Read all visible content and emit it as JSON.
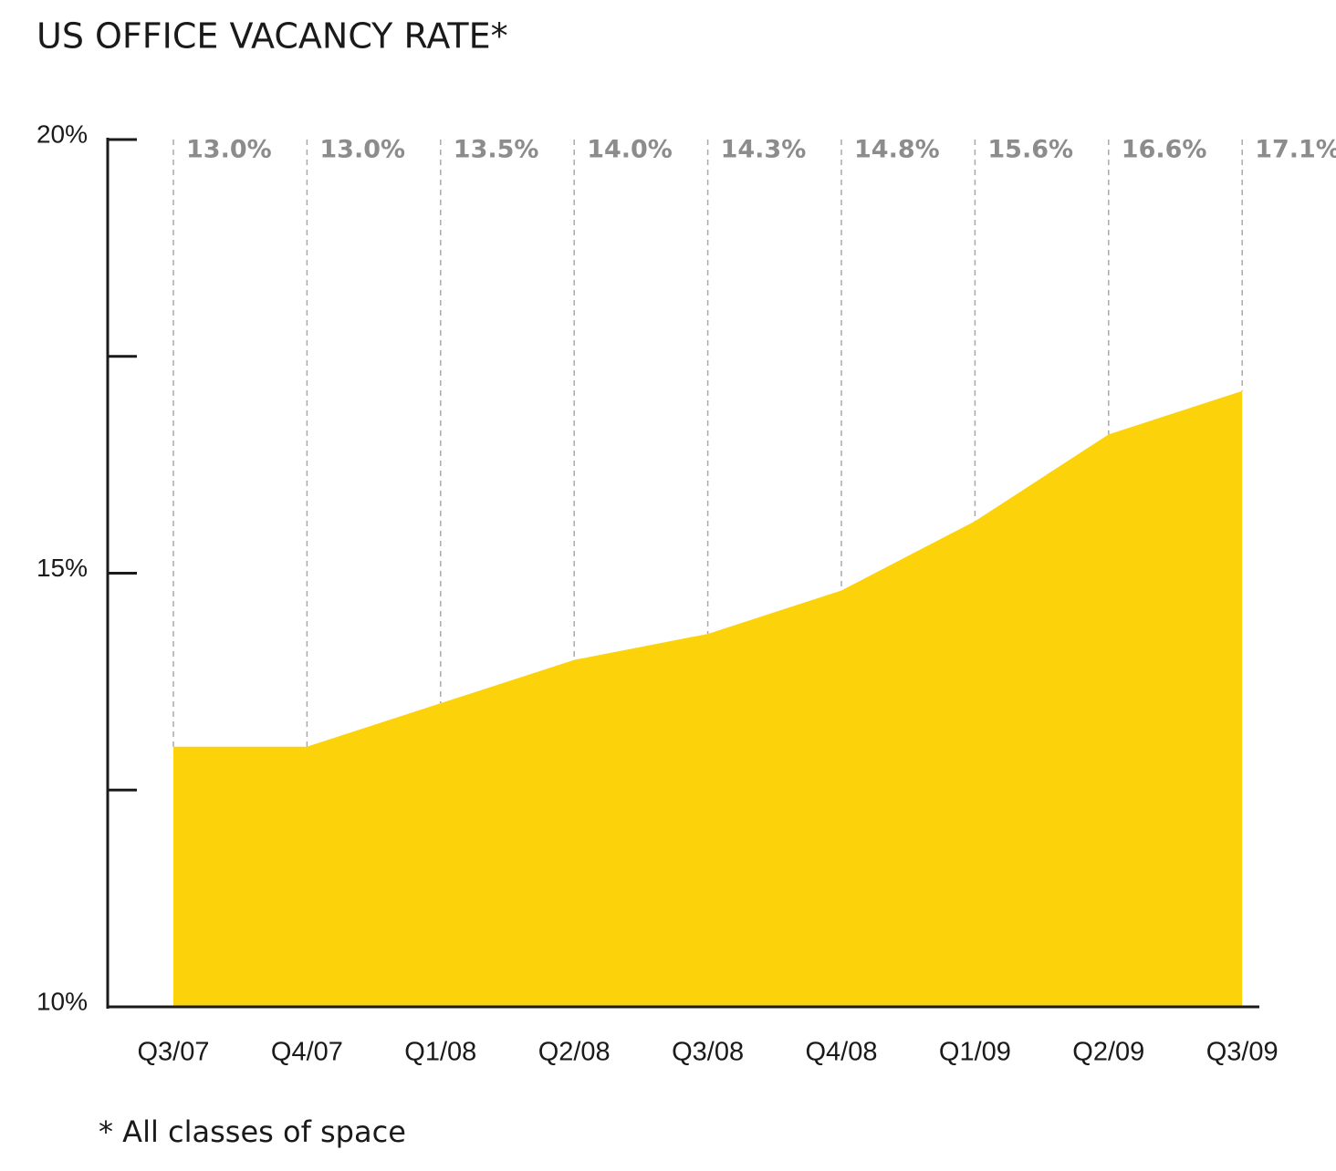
{
  "chart_data": {
    "type": "area",
    "title": "US OFFICE VACANCY RATE*",
    "footnote": "* All classes of space",
    "categories": [
      "Q3/07",
      "Q4/07",
      "Q1/08",
      "Q2/08",
      "Q3/08",
      "Q4/08",
      "Q1/09",
      "Q2/09",
      "Q3/09"
    ],
    "values": [
      13.0,
      13.0,
      13.5,
      14.0,
      14.3,
      14.8,
      15.6,
      16.6,
      17.1
    ],
    "value_labels": [
      "13.0%",
      "13.0%",
      "13.5%",
      "14.0%",
      "14.3%",
      "14.8%",
      "15.6%",
      "16.6%",
      "17.1%"
    ],
    "color": "#fcd20a",
    "ylim": [
      10,
      20
    ],
    "yticks": [
      {
        "value": 10,
        "label": "10%"
      },
      {
        "value": 15,
        "label": "15%"
      },
      {
        "value": 20,
        "label": "20%"
      }
    ],
    "minor_yticks": [
      12.5,
      17.5
    ]
  }
}
